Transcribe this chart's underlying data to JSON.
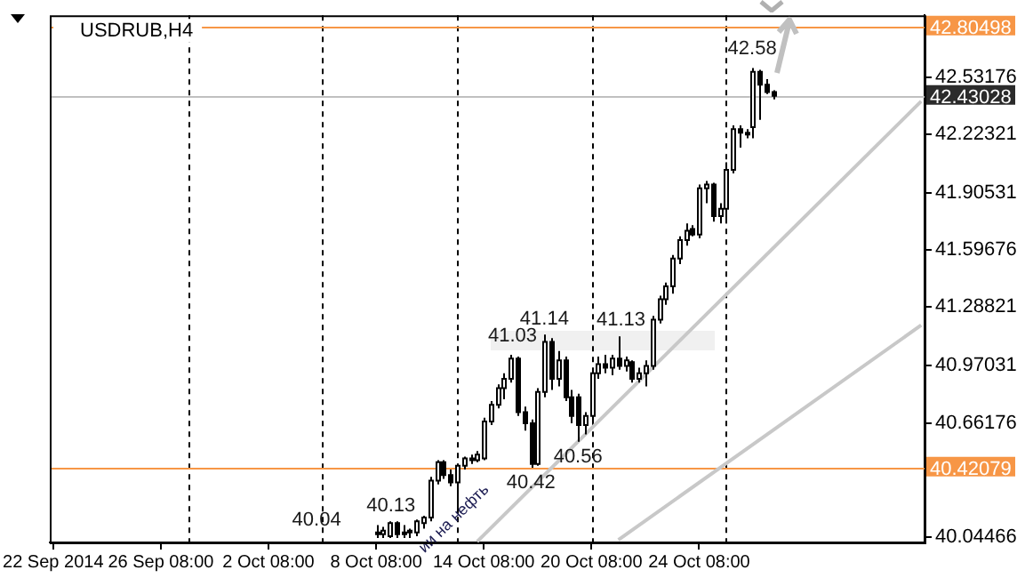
{
  "chart_data": {
    "type": "candlestick",
    "title": "USDRUB,H4",
    "categories": [
      "22 Sep 2014",
      null,
      null,
      null,
      null,
      null,
      null,
      null,
      null,
      null,
      null,
      null,
      null,
      null,
      null,
      null,
      "26 Sep 08:00",
      null,
      null,
      null,
      null,
      null,
      null,
      null,
      null,
      null,
      null,
      null,
      null,
      null,
      null,
      null,
      "2 Oct 08:00",
      null,
      null,
      null,
      null,
      null,
      null,
      null,
      null,
      null,
      null,
      null,
      null,
      null,
      null,
      null,
      "8 Oct 08:00",
      null,
      null,
      null,
      null,
      null,
      null,
      null,
      null,
      null,
      null,
      null,
      null,
      null,
      null,
      null,
      "14 Oct 08:00",
      null,
      null,
      null,
      null,
      null,
      null,
      null,
      null,
      null,
      null,
      null,
      null,
      null,
      null,
      null,
      "20 Oct 08:00",
      null,
      null,
      null,
      null,
      null,
      null,
      null,
      null,
      null,
      null,
      null,
      null,
      null,
      null,
      null,
      "24 Oct 08:00",
      null,
      null,
      null,
      null,
      null,
      null,
      null,
      null,
      null,
      null,
      null,
      null,
      null,
      null,
      null,
      null,
      null,
      null,
      null,
      null,
      null,
      null,
      null,
      null,
      null,
      null,
      null,
      null,
      null,
      null,
      null,
      null,
      null
    ],
    "ohlc": [
      null,
      null,
      null,
      null,
      null,
      null,
      null,
      null,
      null,
      null,
      null,
      null,
      null,
      null,
      null,
      null,
      null,
      null,
      null,
      null,
      null,
      null,
      null,
      null,
      null,
      null,
      null,
      null,
      null,
      null,
      null,
      null,
      null,
      null,
      null,
      null,
      null,
      null,
      null,
      null,
      null,
      null,
      null,
      null,
      null,
      null,
      null,
      null,
      [
        40.06,
        40.11,
        40.04,
        40.07
      ],
      [
        40.06,
        40.1,
        40.04,
        40.08
      ],
      [
        40.05,
        40.13,
        40.04,
        40.12
      ],
      [
        40.12,
        40.13,
        40.04,
        40.06
      ],
      [
        40.06,
        40.11,
        40.04,
        40.07
      ],
      [
        40.07,
        40.09,
        40.04,
        40.08
      ],
      [
        40.07,
        40.14,
        40.05,
        40.13
      ],
      [
        40.12,
        40.16,
        40.09,
        40.15
      ],
      [
        40.15,
        40.37,
        40.13,
        40.35
      ],
      [
        40.35,
        40.46,
        40.33,
        40.45
      ],
      [
        40.45,
        40.46,
        40.36,
        40.38
      ],
      [
        40.38,
        40.41,
        40.32,
        40.34
      ],
      [
        40.34,
        40.44,
        40.17,
        40.43
      ],
      [
        40.43,
        40.48,
        40.41,
        40.47
      ],
      [
        40.47,
        40.49,
        40.44,
        40.46
      ],
      [
        40.46,
        40.51,
        40.45,
        40.49
      ],
      [
        40.47,
        40.69,
        40.46,
        40.67
      ],
      [
        40.67,
        40.78,
        40.65,
        40.76
      ],
      [
        40.76,
        40.87,
        40.74,
        40.85
      ],
      [
        40.85,
        40.93,
        40.79,
        40.9
      ],
      [
        40.9,
        41.03,
        40.88,
        41.01
      ],
      [
        41.01,
        41.02,
        40.7,
        40.72
      ],
      [
        40.72,
        40.75,
        40.62,
        40.66
      ],
      [
        40.66,
        40.68,
        40.42,
        40.44
      ],
      [
        40.44,
        40.85,
        40.43,
        40.83
      ],
      [
        40.83,
        41.14,
        40.8,
        41.1
      ],
      [
        41.1,
        41.12,
        40.84,
        40.9
      ],
      [
        40.9,
        41.05,
        40.86,
        41.0
      ],
      [
        41.0,
        41.02,
        40.78,
        40.8
      ],
      [
        40.8,
        40.84,
        40.66,
        40.7
      ],
      [
        40.8,
        40.82,
        40.56,
        40.65
      ],
      [
        40.65,
        40.72,
        40.6,
        40.7
      ],
      [
        40.7,
        40.95,
        40.66,
        40.93
      ],
      [
        40.93,
        41.02,
        40.9,
        40.98
      ],
      [
        40.98,
        41.03,
        40.93,
        40.96
      ],
      [
        40.96,
        41.03,
        40.92,
        41.01
      ],
      [
        41.01,
        41.13,
        40.95,
        40.97
      ],
      [
        40.97,
        41.02,
        40.94,
        41.0
      ],
      [
        40.99,
        41.0,
        40.88,
        40.9
      ],
      [
        40.9,
        40.96,
        40.88,
        40.93
      ],
      [
        40.93,
        41.0,
        40.86,
        40.97
      ],
      [
        40.97,
        41.24,
        40.95,
        41.22
      ],
      [
        41.22,
        41.35,
        41.2,
        41.33
      ],
      [
        41.33,
        41.42,
        41.3,
        41.4
      ],
      [
        41.4,
        41.57,
        41.36,
        41.55
      ],
      [
        41.55,
        41.67,
        41.52,
        41.65
      ],
      [
        41.65,
        41.74,
        41.62,
        41.7
      ],
      [
        41.71,
        41.73,
        41.67,
        41.68
      ],
      [
        41.68,
        41.95,
        41.66,
        41.93
      ],
      [
        41.93,
        41.97,
        41.85,
        41.95
      ],
      [
        41.95,
        41.96,
        41.75,
        41.78
      ],
      [
        41.78,
        41.85,
        41.74,
        41.82
      ],
      [
        41.82,
        42.07,
        41.74,
        42.03
      ],
      [
        42.03,
        42.27,
        42.01,
        42.25
      ],
      [
        42.25,
        42.27,
        42.15,
        42.23
      ],
      [
        42.23,
        42.25,
        42.2,
        42.23
      ],
      [
        42.26,
        42.58,
        42.2,
        42.56
      ],
      [
        42.56,
        42.57,
        42.3,
        42.49
      ],
      [
        42.49,
        42.52,
        42.44,
        42.45
      ],
      [
        42.45,
        42.46,
        42.41,
        42.43
      ],
      null,
      null,
      null,
      null,
      null,
      null,
      null,
      null,
      null,
      null,
      null,
      null,
      null,
      null,
      null,
      null,
      null,
      null,
      null,
      null,
      null,
      null
    ],
    "series": [
      {
        "type": "line",
        "color": "#c8c8c8",
        "values": [
          null,
          null,
          null,
          null,
          null,
          null,
          null,
          null,
          null,
          null,
          null,
          null,
          null,
          null,
          null,
          null,
          null,
          null,
          null,
          null,
          null,
          null,
          null,
          null,
          null,
          null,
          null,
          null,
          null,
          null,
          null,
          null,
          null,
          null,
          null,
          null,
          null,
          null,
          null,
          null,
          null,
          null,
          null,
          null,
          null,
          null,
          null,
          null,
          null,
          null,
          null,
          null,
          null,
          null,
          null,
          null,
          null,
          null,
          null,
          null,
          null,
          null,
          null,
          40.02,
          null,
          null,
          null,
          null,
          null,
          null,
          null,
          null,
          null,
          null,
          null,
          null,
          null,
          null,
          null,
          null,
          null,
          null,
          null,
          null,
          null,
          null,
          null,
          null,
          null,
          null,
          null,
          null,
          null,
          null,
          null,
          null,
          null,
          null,
          null,
          null,
          null,
          null,
          null,
          null,
          null,
          null,
          null,
          null,
          null,
          null,
          null,
          null,
          null,
          null,
          null,
          null,
          null,
          null,
          null,
          null,
          null,
          null,
          null,
          null,
          null,
          null,
          null,
          null,
          null,
          42.4
        ]
      },
      {
        "type": "line",
        "color": "#c8c8c8",
        "values": [
          null,
          null,
          null,
          null,
          null,
          null,
          null,
          null,
          null,
          null,
          null,
          null,
          null,
          null,
          null,
          null,
          null,
          null,
          null,
          null,
          null,
          null,
          null,
          null,
          null,
          null,
          null,
          null,
          null,
          null,
          null,
          null,
          null,
          null,
          null,
          null,
          null,
          null,
          null,
          null,
          null,
          null,
          null,
          null,
          null,
          null,
          null,
          null,
          null,
          null,
          null,
          null,
          null,
          null,
          null,
          null,
          null,
          null,
          null,
          null,
          null,
          null,
          null,
          null,
          null,
          null,
          null,
          null,
          null,
          null,
          null,
          null,
          null,
          null,
          null,
          null,
          null,
          null,
          null,
          null,
          null,
          null,
          null,
          null,
          40.03,
          null,
          null,
          null,
          null,
          null,
          null,
          null,
          null,
          null,
          null,
          null,
          null,
          null,
          null,
          null,
          null,
          null,
          null,
          null,
          null,
          null,
          null,
          null,
          null,
          null,
          null,
          null,
          null,
          null,
          null,
          null,
          null,
          null,
          null,
          null,
          null,
          null,
          null,
          null,
          null,
          null,
          null,
          null,
          null,
          41.19
        ]
      }
    ],
    "ylim": [
      40.016,
      42.865
    ],
    "yticks": [
      40.04466,
      40.66176,
      40.97031,
      41.28821,
      41.59676,
      41.90531,
      42.22321,
      42.53176
    ],
    "ref_lines": [
      {
        "axis": "y",
        "value": 42.80498,
        "label": "42.80498",
        "color": "#f79646",
        "line_style": "solid"
      },
      {
        "axis": "y",
        "value": 40.42079,
        "label": "40.42079",
        "color": "#f79646",
        "line_style": "solid"
      },
      {
        "axis": "y",
        "value": 42.43028,
        "label": "42.43028",
        "color": "#c0c0c0",
        "line_style": "solid"
      }
    ],
    "annotations": [
      "40.04",
      "40.13",
      "41.03",
      {
        "text": "41.14",
        "y": 41.14
      },
      "41.13",
      {
        "text": "40.42",
        "y": 40.42
      },
      {
        "text": "40.56",
        "y": 40.56
      },
      "42.58",
      "ии на нефть"
    ]
  }
}
